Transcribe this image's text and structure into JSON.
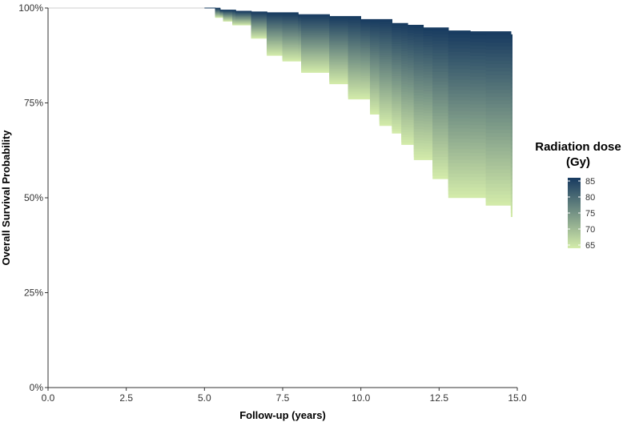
{
  "chart_data": {
    "type": "area",
    "xlabel": "Follow-up (years)",
    "ylabel": "Overall Survival Probability",
    "xlim": [
      0,
      15
    ],
    "ylim": [
      0,
      1
    ],
    "x_ticks": [
      0,
      2.5,
      5,
      7.5,
      10,
      12.5,
      15
    ],
    "x_tick_labels": [
      "0.0",
      "2.5",
      "5.0",
      "7.5",
      "10.0",
      "12.5",
      "15.0"
    ],
    "y_ticks": [
      0,
      0.25,
      0.5,
      0.75,
      1
    ],
    "y_tick_labels": [
      "0%",
      "25%",
      "50%",
      "75%",
      "100%"
    ],
    "grid": false,
    "legend": {
      "title": "Radiation dose (Gy)",
      "title_lines": [
        "Radiation dose",
        "(Gy)"
      ],
      "position": "right",
      "range": [
        64,
        86
      ],
      "ticks": [
        65,
        70,
        75,
        80,
        85
      ],
      "tick_labels": [
        "65",
        "70",
        "75",
        "80",
        "85"
      ],
      "color_low": "#d4ecaa",
      "color_high": "#173a60"
    },
    "line_color": "#cfcfcf",
    "series": [
      {
        "dose": 64,
        "x": [
          0,
          5.0,
          5.35,
          5.6,
          5.9,
          6.5,
          7.0,
          7.5,
          8.1,
          9.0,
          9.6,
          10.3,
          10.6,
          11.0,
          11.3,
          11.7,
          12.3,
          12.8,
          14.0,
          14.8
        ],
        "y": [
          1.0,
          1.0,
          0.975,
          0.965,
          0.955,
          0.92,
          0.875,
          0.86,
          0.83,
          0.8,
          0.76,
          0.72,
          0.69,
          0.67,
          0.64,
          0.6,
          0.55,
          0.5,
          0.48,
          0.45
        ]
      },
      {
        "dose": 85,
        "x": [
          0,
          5.0,
          5.5,
          6.0,
          6.5,
          7.0,
          8.0,
          9.0,
          10.0,
          11.0,
          11.5,
          12.0,
          12.8,
          13.5,
          14.8
        ],
        "y": [
          1.0,
          1.0,
          0.995,
          0.992,
          0.99,
          0.988,
          0.983,
          0.978,
          0.97,
          0.96,
          0.955,
          0.948,
          0.94,
          0.938,
          0.93
        ]
      }
    ]
  }
}
